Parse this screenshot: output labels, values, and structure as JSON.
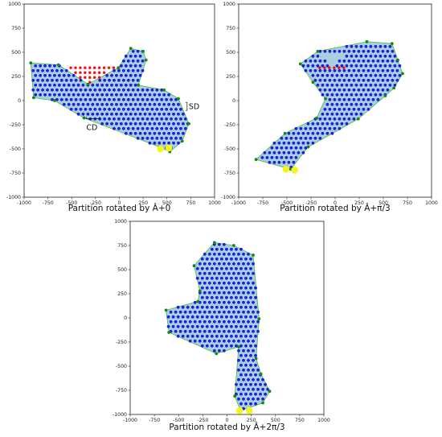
{
  "axis": {
    "xlim": [
      -1000,
      1000
    ],
    "ylim": [
      -1000,
      1000
    ],
    "xticks": [
      -1000,
      -750,
      -500,
      -250,
      0,
      250,
      500,
      750,
      1000
    ],
    "yticks": [
      -1000,
      -750,
      -500,
      -250,
      0,
      250,
      500,
      750,
      1000
    ],
    "xtick_labels": [
      "-1000",
      "-750",
      "-500",
      "-250",
      "0",
      "250",
      "500",
      "750",
      "1000"
    ],
    "ytick_labels": [
      "-1000",
      "-750",
      "-500",
      "-250",
      "0",
      "250",
      "500",
      "750",
      "1000"
    ]
  },
  "colors": {
    "fill": "#a9cfe0",
    "edge": "#4fbf4f",
    "interior_dot": "#1f1fd8",
    "vertex_dot": "#138a13",
    "unused_dot": "#ee1111",
    "start_dot": "#f5f51a"
  },
  "chart_data": [
    {
      "type": "scatter",
      "caption": "Partition rotated by Â+0",
      "annotations": [
        {
          "text": "SD",
          "x": 720,
          "y": -60
        },
        {
          "text": "CD",
          "x": -280,
          "y": -320
        }
      ],
      "polygon": [
        [
          -930,
          390
        ],
        [
          -640,
          370
        ],
        [
          -330,
          170
        ],
        [
          -10,
          340
        ],
        [
          120,
          540
        ],
        [
          250,
          510
        ],
        [
          280,
          420
        ],
        [
          200,
          160
        ],
        [
          470,
          110
        ],
        [
          620,
          20
        ],
        [
          730,
          -240
        ],
        [
          660,
          -420
        ],
        [
          530,
          -530
        ],
        [
          420,
          -480
        ],
        [
          -370,
          -180
        ],
        [
          -680,
          0
        ],
        [
          -900,
          30
        ]
      ],
      "red_triangle": [
        [
          -530,
          340
        ],
        [
          -20,
          340
        ],
        [
          -330,
          170
        ]
      ],
      "start_points": [
        [
          430,
          -500
        ],
        [
          520,
          -490
        ]
      ]
    },
    {
      "type": "scatter",
      "caption": "Partition rotated by Â+π/3",
      "annotations": [],
      "polygon": [
        [
          -180,
          510
        ],
        [
          330,
          610
        ],
        [
          590,
          590
        ],
        [
          650,
          420
        ],
        [
          700,
          280
        ],
        [
          610,
          130
        ],
        [
          520,
          50
        ],
        [
          240,
          -190
        ],
        [
          -280,
          -480
        ],
        [
          -460,
          -710
        ],
        [
          -820,
          -610
        ],
        [
          -520,
          -340
        ],
        [
          -190,
          -180
        ],
        [
          -100,
          20
        ],
        [
          -230,
          190
        ],
        [
          -360,
          380
        ]
      ],
      "red_triangle": [
        [
          -180,
          510
        ],
        [
          130,
          510
        ],
        [
          -20,
          340
        ]
      ],
      "start_points": [
        [
          -510,
          -710
        ],
        [
          -420,
          -720
        ]
      ]
    },
    {
      "type": "scatter",
      "caption": "Partition rotated by Â+2π/3",
      "annotations": [],
      "polygon": [
        [
          -130,
          780
        ],
        [
          70,
          750
        ],
        [
          270,
          650
        ],
        [
          330,
          -10
        ],
        [
          300,
          -420
        ],
        [
          350,
          -580
        ],
        [
          440,
          -760
        ],
        [
          370,
          -880
        ],
        [
          140,
          -960
        ],
        [
          80,
          -810
        ],
        [
          120,
          -300
        ],
        [
          -110,
          -370
        ],
        [
          -600,
          -150
        ],
        [
          -630,
          80
        ],
        [
          -300,
          170
        ],
        [
          -280,
          280
        ],
        [
          -340,
          540
        ]
      ],
      "red_triangle": [],
      "start_points": [
        [
          130,
          -960
        ],
        [
          230,
          -960
        ]
      ]
    }
  ]
}
